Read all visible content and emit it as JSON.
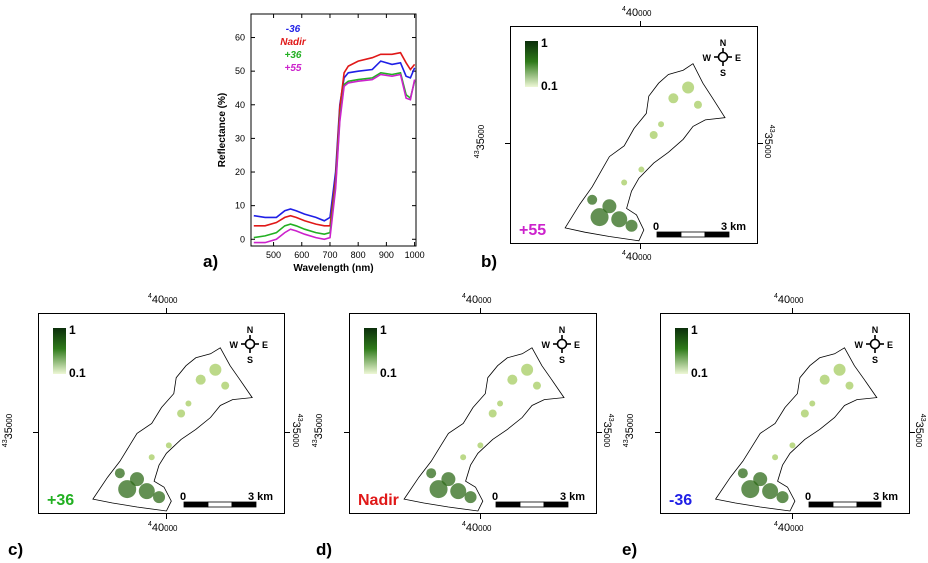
{
  "chart_data": {
    "type": "line",
    "xlabel": "Wavelength (nm)",
    "ylabel": "Reflectance (%)",
    "xlim": [
      420,
      1005
    ],
    "ylim": [
      -2,
      67
    ],
    "xticks": [
      "500",
      "600",
      "700",
      "800",
      "900",
      "1000"
    ],
    "yticks": [
      "0",
      "10",
      "20",
      "30",
      "40",
      "50",
      "60"
    ],
    "x": [
      430,
      470,
      510,
      540,
      560,
      580,
      610,
      650,
      680,
      700,
      720,
      735,
      750,
      765,
      800,
      850,
      880,
      920,
      950,
      970,
      985,
      1000
    ],
    "series": [
      {
        "name": "-36",
        "color": "#1f1fe6",
        "values": [
          7,
          6.5,
          6.5,
          8.5,
          9,
          8.5,
          7.5,
          6.5,
          5.5,
          6.5,
          20,
          40,
          48,
          49.5,
          50,
          50.5,
          53,
          52,
          52.5,
          48.5,
          48,
          51
        ]
      },
      {
        "name": "Nadir",
        "color": "#e01818",
        "values": [
          4,
          4,
          5,
          6.5,
          7,
          6.5,
          5.5,
          4.5,
          4,
          4,
          18,
          39,
          49.5,
          51.5,
          53,
          54,
          55,
          55,
          55.5,
          52.5,
          50.5,
          52
        ]
      },
      {
        "name": "+36",
        "color": "#22b022",
        "values": [
          0.5,
          1,
          2,
          4,
          4.5,
          4,
          3,
          2,
          1.5,
          2,
          16,
          36,
          46,
          47,
          47.5,
          48,
          49.5,
          49,
          49.5,
          43,
          42,
          47
        ]
      },
      {
        "name": "+55",
        "color": "#cc22cc",
        "values": [
          -1,
          -1,
          0,
          2,
          3,
          2.5,
          1.5,
          0.5,
          0,
          0.5,
          15,
          35,
          45.5,
          46.5,
          47,
          47.5,
          49,
          48.5,
          49,
          42,
          41.5,
          47.5
        ]
      }
    ]
  },
  "legend": {
    "m36": "-36",
    "nadir": "Nadir",
    "p36": "+36",
    "p55": "+55"
  },
  "panels": {
    "a": "a)",
    "b": "b)",
    "c": "c)",
    "d": "d)",
    "e": "e)"
  },
  "maps": {
    "easting_main": "40",
    "easting_sup": "4",
    "easting_sub": "000",
    "northing_main": "35",
    "northing_sup": "43",
    "northing_sub": "000",
    "scale_zero": "0",
    "scale_end": "3 km",
    "legend_max": "1",
    "legend_min": "0.1",
    "compass": {
      "n": "N",
      "s": "S",
      "e": "E",
      "w": "W"
    },
    "views": [
      {
        "id": "b",
        "label": "+55",
        "color": "#cc22cc"
      },
      {
        "id": "c",
        "label": "+36",
        "color": "#22b022"
      },
      {
        "id": "d",
        "label": "Nadir",
        "color": "#e01818"
      },
      {
        "id": "e",
        "label": "-36",
        "color": "#1f1fe6"
      }
    ]
  }
}
